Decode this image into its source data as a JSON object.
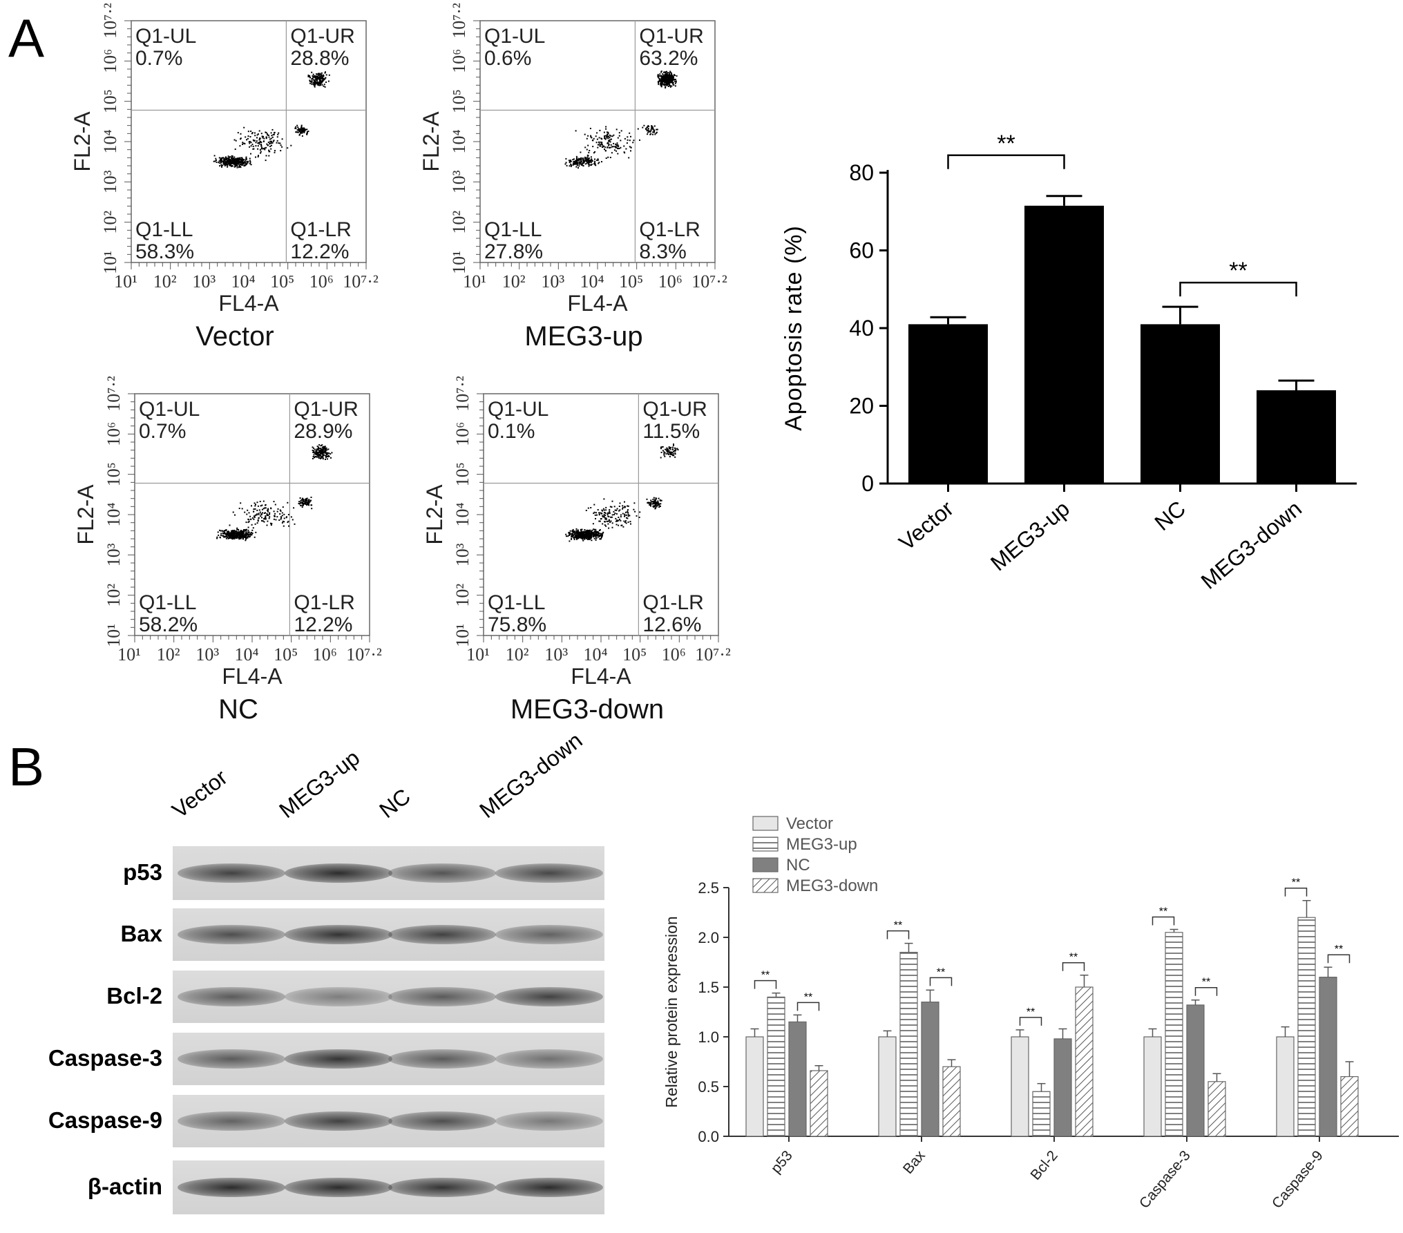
{
  "panel_labels": {
    "a": "A",
    "b": "B"
  },
  "flow_cytometry": {
    "y_axis_label": "FL2-A",
    "x_axis_label": "FL4-A",
    "tick_labels": [
      "10¹",
      "10²",
      "10³",
      "10⁴",
      "10⁵",
      "10⁶",
      "10⁷·²"
    ],
    "quadrant_names": {
      "ul": "Q1-UL",
      "ur": "Q1-UR",
      "ll": "Q1-LL",
      "lr": "Q1-LR"
    },
    "plots": [
      {
        "title": "Vector",
        "ul": "0.7%",
        "ur": "28.8%",
        "ll": "58.3%",
        "lr": "12.2%"
      },
      {
        "title": "MEG3-up",
        "ul": "0.6%",
        "ur": "63.2%",
        "ll": "27.8%",
        "lr": "8.3%"
      },
      {
        "title": "NC",
        "ul": "0.7%",
        "ur": "28.9%",
        "ll": "58.2%",
        "lr": "12.2%"
      },
      {
        "title": "MEG3-down",
        "ul": "0.1%",
        "ur": "11.5%",
        "ll": "75.8%",
        "lr": "12.6%"
      }
    ]
  },
  "chart_data": [
    {
      "type": "bar",
      "title": "",
      "ylabel": "Apoptosis rate (%)",
      "xlabel": "",
      "categories": [
        "Vector",
        "MEG3-up",
        "NC",
        "MEG3-down"
      ],
      "values": [
        41,
        71.5,
        41,
        24
      ],
      "errors": [
        1.8,
        2.5,
        4.5,
        2.5
      ],
      "ylim": [
        0,
        80
      ],
      "yticks": [
        "0",
        "20",
        "40",
        "60",
        "80"
      ],
      "significance": [
        {
          "from": 0,
          "to": 1,
          "label": "**"
        },
        {
          "from": 2,
          "to": 3,
          "label": "**"
        }
      ],
      "bar_color": "#000000"
    },
    {
      "type": "bar",
      "title": "",
      "ylabel": "Relative protein expression",
      "xlabel": "",
      "categories": [
        "p53",
        "Bax",
        "Bcl-2",
        "Caspase-3",
        "Caspase-9"
      ],
      "ylim": [
        0,
        2.5
      ],
      "yticks": [
        "0.0",
        "0.5",
        "1.0",
        "1.5",
        "2.0",
        "2.5"
      ],
      "legend_position": "top-left",
      "series": [
        {
          "name": "Vector",
          "pattern": "light-fill",
          "values": [
            1.0,
            1.0,
            1.0,
            1.0,
            1.0
          ],
          "errors": [
            0.08,
            0.06,
            0.07,
            0.08,
            0.1
          ]
        },
        {
          "name": "MEG3-up",
          "pattern": "horizontal-stripes",
          "values": [
            1.4,
            1.85,
            0.45,
            2.05,
            2.2
          ],
          "errors": [
            0.04,
            0.09,
            0.08,
            0.03,
            0.17
          ]
        },
        {
          "name": "NC",
          "pattern": "dark-fill",
          "values": [
            1.15,
            1.35,
            0.98,
            1.32,
            1.6
          ],
          "errors": [
            0.07,
            0.12,
            0.1,
            0.05,
            0.1
          ]
        },
        {
          "name": "MEG3-down",
          "pattern": "diagonal-stripes",
          "values": [
            0.66,
            0.7,
            1.5,
            0.55,
            0.6
          ],
          "errors": [
            0.05,
            0.07,
            0.12,
            0.08,
            0.15
          ]
        }
      ],
      "significance_label": "**"
    }
  ],
  "western_blot": {
    "lanes": [
      "Vector",
      "MEG3-up",
      "NC",
      "MEG3-down"
    ],
    "proteins": [
      {
        "label": "p53",
        "intensity": [
          0.75,
          0.9,
          0.6,
          0.7
        ]
      },
      {
        "label": "Bax",
        "intensity": [
          0.65,
          0.85,
          0.75,
          0.5
        ]
      },
      {
        "label": "Bcl-2",
        "intensity": [
          0.55,
          0.3,
          0.55,
          0.75
        ]
      },
      {
        "label": "Caspase-3",
        "intensity": [
          0.55,
          0.85,
          0.55,
          0.4
        ]
      },
      {
        "label": "Caspase-9",
        "intensity": [
          0.5,
          0.75,
          0.65,
          0.35
        ]
      },
      {
        "label": "β-actin",
        "intensity": [
          0.9,
          0.9,
          0.85,
          0.9
        ]
      }
    ]
  }
}
